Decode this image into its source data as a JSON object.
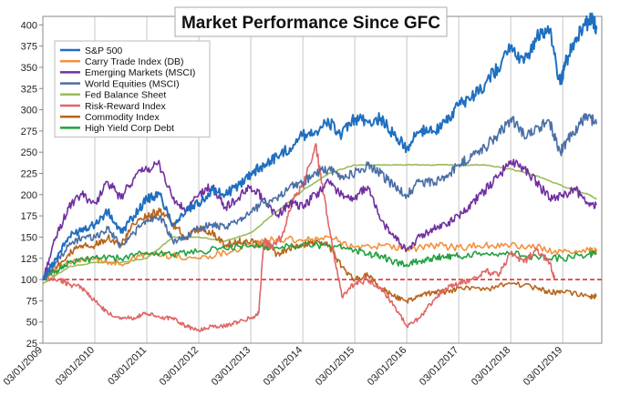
{
  "chart_data": {
    "type": "line",
    "title": "Market Performance Since GFC",
    "xlabel": "",
    "ylabel": "",
    "ylim": [
      25,
      410
    ],
    "y_ticks": [
      25,
      50,
      75,
      100,
      125,
      150,
      175,
      200,
      225,
      250,
      275,
      300,
      325,
      350,
      375,
      400
    ],
    "x_tick_labels": [
      "03/01/2009",
      "03/01/2010",
      "03/01/2011",
      "03/01/2012",
      "03/01/2013",
      "03/01/2014",
      "03/01/2015",
      "03/01/2016",
      "03/01/2017",
      "03/01/2018",
      "03/01/2019"
    ],
    "xlim": [
      2009.0,
      2019.75
    ],
    "grid": "vertical",
    "legend": "top-left",
    "reference_line": {
      "y": 100,
      "color": "#e02020",
      "style": "dashed"
    },
    "series": [
      {
        "name": "S&P 500",
        "color": "#1f6fc0",
        "points": [
          [
            2009.0,
            100
          ],
          [
            2009.25,
            125
          ],
          [
            2009.5,
            150
          ],
          [
            2009.75,
            160
          ],
          [
            2010.0,
            165
          ],
          [
            2010.25,
            180
          ],
          [
            2010.5,
            155
          ],
          [
            2010.75,
            175
          ],
          [
            2011.0,
            195
          ],
          [
            2011.25,
            200
          ],
          [
            2011.5,
            165
          ],
          [
            2011.75,
            180
          ],
          [
            2012.0,
            190
          ],
          [
            2012.25,
            205
          ],
          [
            2012.5,
            200
          ],
          [
            2012.75,
            210
          ],
          [
            2013.0,
            225
          ],
          [
            2013.25,
            235
          ],
          [
            2013.5,
            245
          ],
          [
            2013.75,
            255
          ],
          [
            2014.0,
            270
          ],
          [
            2014.25,
            275
          ],
          [
            2014.5,
            285
          ],
          [
            2014.75,
            270
          ],
          [
            2015.0,
            290
          ],
          [
            2015.25,
            285
          ],
          [
            2015.5,
            290
          ],
          [
            2015.75,
            270
          ],
          [
            2016.0,
            255
          ],
          [
            2016.25,
            275
          ],
          [
            2016.5,
            275
          ],
          [
            2016.75,
            285
          ],
          [
            2017.0,
            305
          ],
          [
            2017.25,
            315
          ],
          [
            2017.5,
            330
          ],
          [
            2017.75,
            350
          ],
          [
            2018.0,
            375
          ],
          [
            2018.25,
            355
          ],
          [
            2018.5,
            385
          ],
          [
            2018.75,
            395
          ],
          [
            2018.95,
            330
          ],
          [
            2019.05,
            355
          ],
          [
            2019.25,
            385
          ],
          [
            2019.45,
            400
          ],
          [
            2019.55,
            410
          ],
          [
            2019.65,
            395
          ]
        ]
      },
      {
        "name": "Carry Trade Index (DB)",
        "color": "#f2913d",
        "points": [
          [
            2009.0,
            100
          ],
          [
            2009.5,
            120
          ],
          [
            2010.0,
            125
          ],
          [
            2010.5,
            118
          ],
          [
            2011.0,
            130
          ],
          [
            2011.5,
            128
          ],
          [
            2012.0,
            125
          ],
          [
            2012.5,
            132
          ],
          [
            2013.0,
            140
          ],
          [
            2013.5,
            148
          ],
          [
            2014.0,
            145
          ],
          [
            2014.5,
            150
          ],
          [
            2015.0,
            138
          ],
          [
            2015.5,
            140
          ],
          [
            2016.0,
            135
          ],
          [
            2016.5,
            140
          ],
          [
            2017.0,
            138
          ],
          [
            2017.5,
            140
          ],
          [
            2018.0,
            140
          ],
          [
            2018.5,
            138
          ],
          [
            2019.0,
            132
          ],
          [
            2019.5,
            135
          ],
          [
            2019.65,
            133
          ]
        ]
      },
      {
        "name": "Emerging Markets (MSCI)",
        "color": "#7030a0",
        "points": [
          [
            2009.0,
            100
          ],
          [
            2009.25,
            150
          ],
          [
            2009.5,
            185
          ],
          [
            2009.75,
            200
          ],
          [
            2010.0,
            190
          ],
          [
            2010.25,
            215
          ],
          [
            2010.5,
            195
          ],
          [
            2010.75,
            220
          ],
          [
            2011.0,
            230
          ],
          [
            2011.25,
            235
          ],
          [
            2011.5,
            195
          ],
          [
            2011.75,
            180
          ],
          [
            2012.0,
            200
          ],
          [
            2012.25,
            210
          ],
          [
            2012.5,
            185
          ],
          [
            2012.75,
            195
          ],
          [
            2013.0,
            210
          ],
          [
            2013.25,
            195
          ],
          [
            2013.5,
            175
          ],
          [
            2013.75,
            190
          ],
          [
            2014.0,
            185
          ],
          [
            2014.25,
            200
          ],
          [
            2014.5,
            215
          ],
          [
            2014.75,
            200
          ],
          [
            2015.0,
            195
          ],
          [
            2015.25,
            210
          ],
          [
            2015.5,
            170
          ],
          [
            2015.75,
            150
          ],
          [
            2016.0,
            135
          ],
          [
            2016.25,
            150
          ],
          [
            2016.5,
            160
          ],
          [
            2016.75,
            165
          ],
          [
            2017.0,
            175
          ],
          [
            2017.25,
            190
          ],
          [
            2017.5,
            205
          ],
          [
            2017.75,
            220
          ],
          [
            2018.0,
            240
          ],
          [
            2018.25,
            230
          ],
          [
            2018.5,
            215
          ],
          [
            2018.75,
            195
          ],
          [
            2019.0,
            200
          ],
          [
            2019.25,
            205
          ],
          [
            2019.5,
            190
          ],
          [
            2019.65,
            188
          ]
        ]
      },
      {
        "name": "World Equities (MSCI)",
        "color": "#4a6fa5",
        "points": [
          [
            2009.0,
            100
          ],
          [
            2009.25,
            120
          ],
          [
            2009.5,
            140
          ],
          [
            2009.75,
            150
          ],
          [
            2010.0,
            150
          ],
          [
            2010.25,
            160
          ],
          [
            2010.5,
            140
          ],
          [
            2010.75,
            155
          ],
          [
            2011.0,
            170
          ],
          [
            2011.25,
            175
          ],
          [
            2011.5,
            145
          ],
          [
            2011.75,
            150
          ],
          [
            2012.0,
            160
          ],
          [
            2012.25,
            165
          ],
          [
            2012.5,
            160
          ],
          [
            2012.75,
            170
          ],
          [
            2013.0,
            180
          ],
          [
            2013.25,
            190
          ],
          [
            2013.5,
            195
          ],
          [
            2013.75,
            210
          ],
          [
            2014.0,
            215
          ],
          [
            2014.25,
            225
          ],
          [
            2014.5,
            230
          ],
          [
            2014.75,
            220
          ],
          [
            2015.0,
            225
          ],
          [
            2015.25,
            235
          ],
          [
            2015.5,
            225
          ],
          [
            2015.75,
            210
          ],
          [
            2016.0,
            200
          ],
          [
            2016.25,
            215
          ],
          [
            2016.5,
            215
          ],
          [
            2016.75,
            220
          ],
          [
            2017.0,
            235
          ],
          [
            2017.25,
            245
          ],
          [
            2017.5,
            255
          ],
          [
            2017.75,
            270
          ],
          [
            2018.0,
            290
          ],
          [
            2018.25,
            270
          ],
          [
            2018.5,
            280
          ],
          [
            2018.75,
            285
          ],
          [
            2018.95,
            250
          ],
          [
            2019.1,
            265
          ],
          [
            2019.3,
            280
          ],
          [
            2019.45,
            295
          ],
          [
            2019.65,
            283
          ]
        ]
      },
      {
        "name": "Fed Balance Sheet",
        "color": "#9bbb59",
        "points": [
          [
            2009.0,
            95
          ],
          [
            2009.25,
            105
          ],
          [
            2009.5,
            115
          ],
          [
            2010.0,
            120
          ],
          [
            2010.5,
            120
          ],
          [
            2011.0,
            125
          ],
          [
            2011.5,
            150
          ],
          [
            2012.0,
            150
          ],
          [
            2012.5,
            145
          ],
          [
            2013.0,
            155
          ],
          [
            2013.5,
            180
          ],
          [
            2014.0,
            205
          ],
          [
            2014.5,
            225
          ],
          [
            2015.0,
            235
          ],
          [
            2015.5,
            235
          ],
          [
            2016.0,
            235
          ],
          [
            2016.5,
            235
          ],
          [
            2017.0,
            235
          ],
          [
            2017.5,
            235
          ],
          [
            2018.0,
            230
          ],
          [
            2018.5,
            222
          ],
          [
            2019.0,
            210
          ],
          [
            2019.5,
            200
          ],
          [
            2019.65,
            195
          ]
        ]
      },
      {
        "name": "Risk-Reward Index",
        "color": "#e06666",
        "points": [
          [
            2009.0,
            100
          ],
          [
            2009.3,
            100
          ],
          [
            2009.5,
            95
          ],
          [
            2009.75,
            90
          ],
          [
            2010.0,
            75
          ],
          [
            2010.25,
            60
          ],
          [
            2010.5,
            55
          ],
          [
            2010.75,
            55
          ],
          [
            2011.0,
            60
          ],
          [
            2011.25,
            55
          ],
          [
            2011.5,
            55
          ],
          [
            2011.75,
            45
          ],
          [
            2012.0,
            40
          ],
          [
            2012.25,
            45
          ],
          [
            2012.5,
            45
          ],
          [
            2012.75,
            50
          ],
          [
            2013.0,
            55
          ],
          [
            2013.15,
            60
          ],
          [
            2013.25,
            145
          ],
          [
            2013.4,
            140
          ],
          [
            2013.6,
            150
          ],
          [
            2013.8,
            195
          ],
          [
            2014.0,
            210
          ],
          [
            2014.25,
            260
          ],
          [
            2014.4,
            200
          ],
          [
            2014.6,
            130
          ],
          [
            2014.75,
            80
          ],
          [
            2015.0,
            95
          ],
          [
            2015.25,
            100
          ],
          [
            2015.5,
            90
          ],
          [
            2015.75,
            70
          ],
          [
            2016.0,
            45
          ],
          [
            2016.25,
            55
          ],
          [
            2016.5,
            75
          ],
          [
            2016.75,
            90
          ],
          [
            2017.0,
            95
          ],
          [
            2017.25,
            100
          ],
          [
            2017.5,
            110
          ],
          [
            2017.75,
            105
          ],
          [
            2018.0,
            130
          ],
          [
            2018.25,
            120
          ],
          [
            2018.5,
            135
          ],
          [
            2018.75,
            120
          ],
          [
            2018.85,
            100
          ]
        ]
      },
      {
        "name": "Commodity Index",
        "color": "#b8651b",
        "points": [
          [
            2009.0,
            100
          ],
          [
            2009.25,
            115
          ],
          [
            2009.5,
            130
          ],
          [
            2009.75,
            140
          ],
          [
            2010.0,
            140
          ],
          [
            2010.25,
            150
          ],
          [
            2010.5,
            140
          ],
          [
            2010.75,
            165
          ],
          [
            2011.0,
            175
          ],
          [
            2011.25,
            180
          ],
          [
            2011.5,
            165
          ],
          [
            2011.75,
            150
          ],
          [
            2012.0,
            160
          ],
          [
            2012.25,
            155
          ],
          [
            2012.5,
            140
          ],
          [
            2012.75,
            145
          ],
          [
            2013.0,
            145
          ],
          [
            2013.25,
            140
          ],
          [
            2013.5,
            130
          ],
          [
            2013.75,
            135
          ],
          [
            2014.0,
            140
          ],
          [
            2014.25,
            145
          ],
          [
            2014.5,
            140
          ],
          [
            2014.75,
            115
          ],
          [
            2015.0,
            100
          ],
          [
            2015.25,
            105
          ],
          [
            2015.5,
            90
          ],
          [
            2015.75,
            80
          ],
          [
            2016.0,
            75
          ],
          [
            2016.25,
            80
          ],
          [
            2016.5,
            85
          ],
          [
            2016.75,
            85
          ],
          [
            2017.0,
            90
          ],
          [
            2017.5,
            88
          ],
          [
            2018.0,
            95
          ],
          [
            2018.5,
            90
          ],
          [
            2018.75,
            85
          ],
          [
            2019.0,
            85
          ],
          [
            2019.5,
            80
          ],
          [
            2019.65,
            80
          ]
        ]
      },
      {
        "name": "High Yield Corp Debt",
        "color": "#20a040",
        "points": [
          [
            2009.0,
            100
          ],
          [
            2009.25,
            110
          ],
          [
            2009.5,
            120
          ],
          [
            2010.0,
            125
          ],
          [
            2010.5,
            125
          ],
          [
            2011.0,
            132
          ],
          [
            2011.5,
            130
          ],
          [
            2012.0,
            133
          ],
          [
            2012.5,
            137
          ],
          [
            2013.0,
            140
          ],
          [
            2013.5,
            138
          ],
          [
            2014.0,
            142
          ],
          [
            2014.5,
            140
          ],
          [
            2015.0,
            135
          ],
          [
            2015.25,
            130
          ],
          [
            2015.5,
            128
          ],
          [
            2015.75,
            120
          ],
          [
            2016.0,
            118
          ],
          [
            2016.25,
            122
          ],
          [
            2016.5,
            125
          ],
          [
            2016.75,
            127
          ],
          [
            2017.0,
            128
          ],
          [
            2017.5,
            130
          ],
          [
            2018.0,
            130
          ],
          [
            2018.5,
            127
          ],
          [
            2019.0,
            125
          ],
          [
            2019.5,
            130
          ],
          [
            2019.65,
            130
          ]
        ]
      }
    ]
  }
}
